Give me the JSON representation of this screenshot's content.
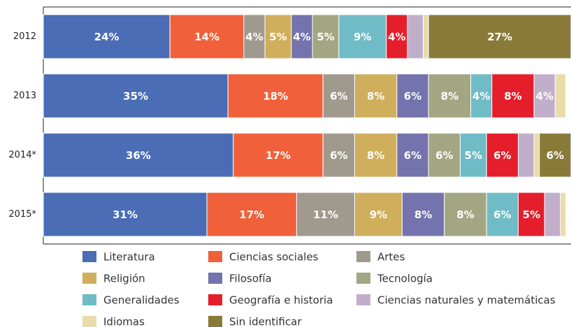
{
  "chart_data": {
    "type": "stacked_bar_horizontal",
    "categories": [
      "2012",
      "2013",
      "2014*",
      "2015*"
    ],
    "xlim": [
      0,
      100
    ],
    "series": [
      {
        "name": "Literatura",
        "color": "#4a6db5",
        "values": [
          24,
          35,
          36,
          31
        ],
        "value_labels": [
          "24%",
          "35%",
          "36%",
          "31%"
        ]
      },
      {
        "name": "Ciencias sociales",
        "color": "#f0603a",
        "values": [
          14,
          18,
          17,
          17
        ],
        "value_labels": [
          "14%",
          "18%",
          "17%",
          "17%"
        ]
      },
      {
        "name": "Artes",
        "color": "#a09a8e",
        "values": [
          4,
          6,
          6,
          11
        ],
        "value_labels": [
          "4%",
          "6%",
          "6%",
          "11%"
        ]
      },
      {
        "name": "Religión",
        "color": "#cfae5c",
        "values": [
          5,
          8,
          8,
          9
        ],
        "value_labels": [
          "5%",
          "8%",
          "8%",
          "9%"
        ]
      },
      {
        "name": "Filosofía",
        "color": "#7473ad",
        "values": [
          4,
          6,
          6,
          8
        ],
        "value_labels": [
          "4%",
          "6%",
          "6%",
          "8%"
        ]
      },
      {
        "name": "Tecnología",
        "color": "#a3a682",
        "values": [
          5,
          8,
          6,
          8
        ],
        "value_labels": [
          "5%",
          "8%",
          "6%",
          "8%"
        ]
      },
      {
        "name": "Generalidades",
        "color": "#6fbcc6",
        "values": [
          9,
          4,
          5,
          6
        ],
        "value_labels": [
          "9%",
          "4%",
          "5%",
          "6%"
        ]
      },
      {
        "name": "Geografía e historia",
        "color": "#e41e2b",
        "values": [
          4,
          8,
          6,
          5
        ],
        "value_labels": [
          "4%",
          "8%",
          "6%",
          "5%"
        ]
      },
      {
        "name": "Ciencias naturales y matemáticas",
        "color": "#c0aecb",
        "values": [
          3,
          4,
          3,
          3
        ],
        "value_labels": [
          null,
          "4%",
          null,
          null
        ]
      },
      {
        "name": "Idiomas",
        "color": "#e9dcaa",
        "values": [
          1,
          2,
          1,
          1
        ],
        "value_labels": [
          null,
          null,
          null,
          null
        ]
      },
      {
        "name": "Sin identificar",
        "color": "#8a7a3a",
        "values": [
          27,
          0,
          6,
          0
        ],
        "value_labels": [
          "27%",
          null,
          "6%",
          null
        ]
      }
    ]
  }
}
